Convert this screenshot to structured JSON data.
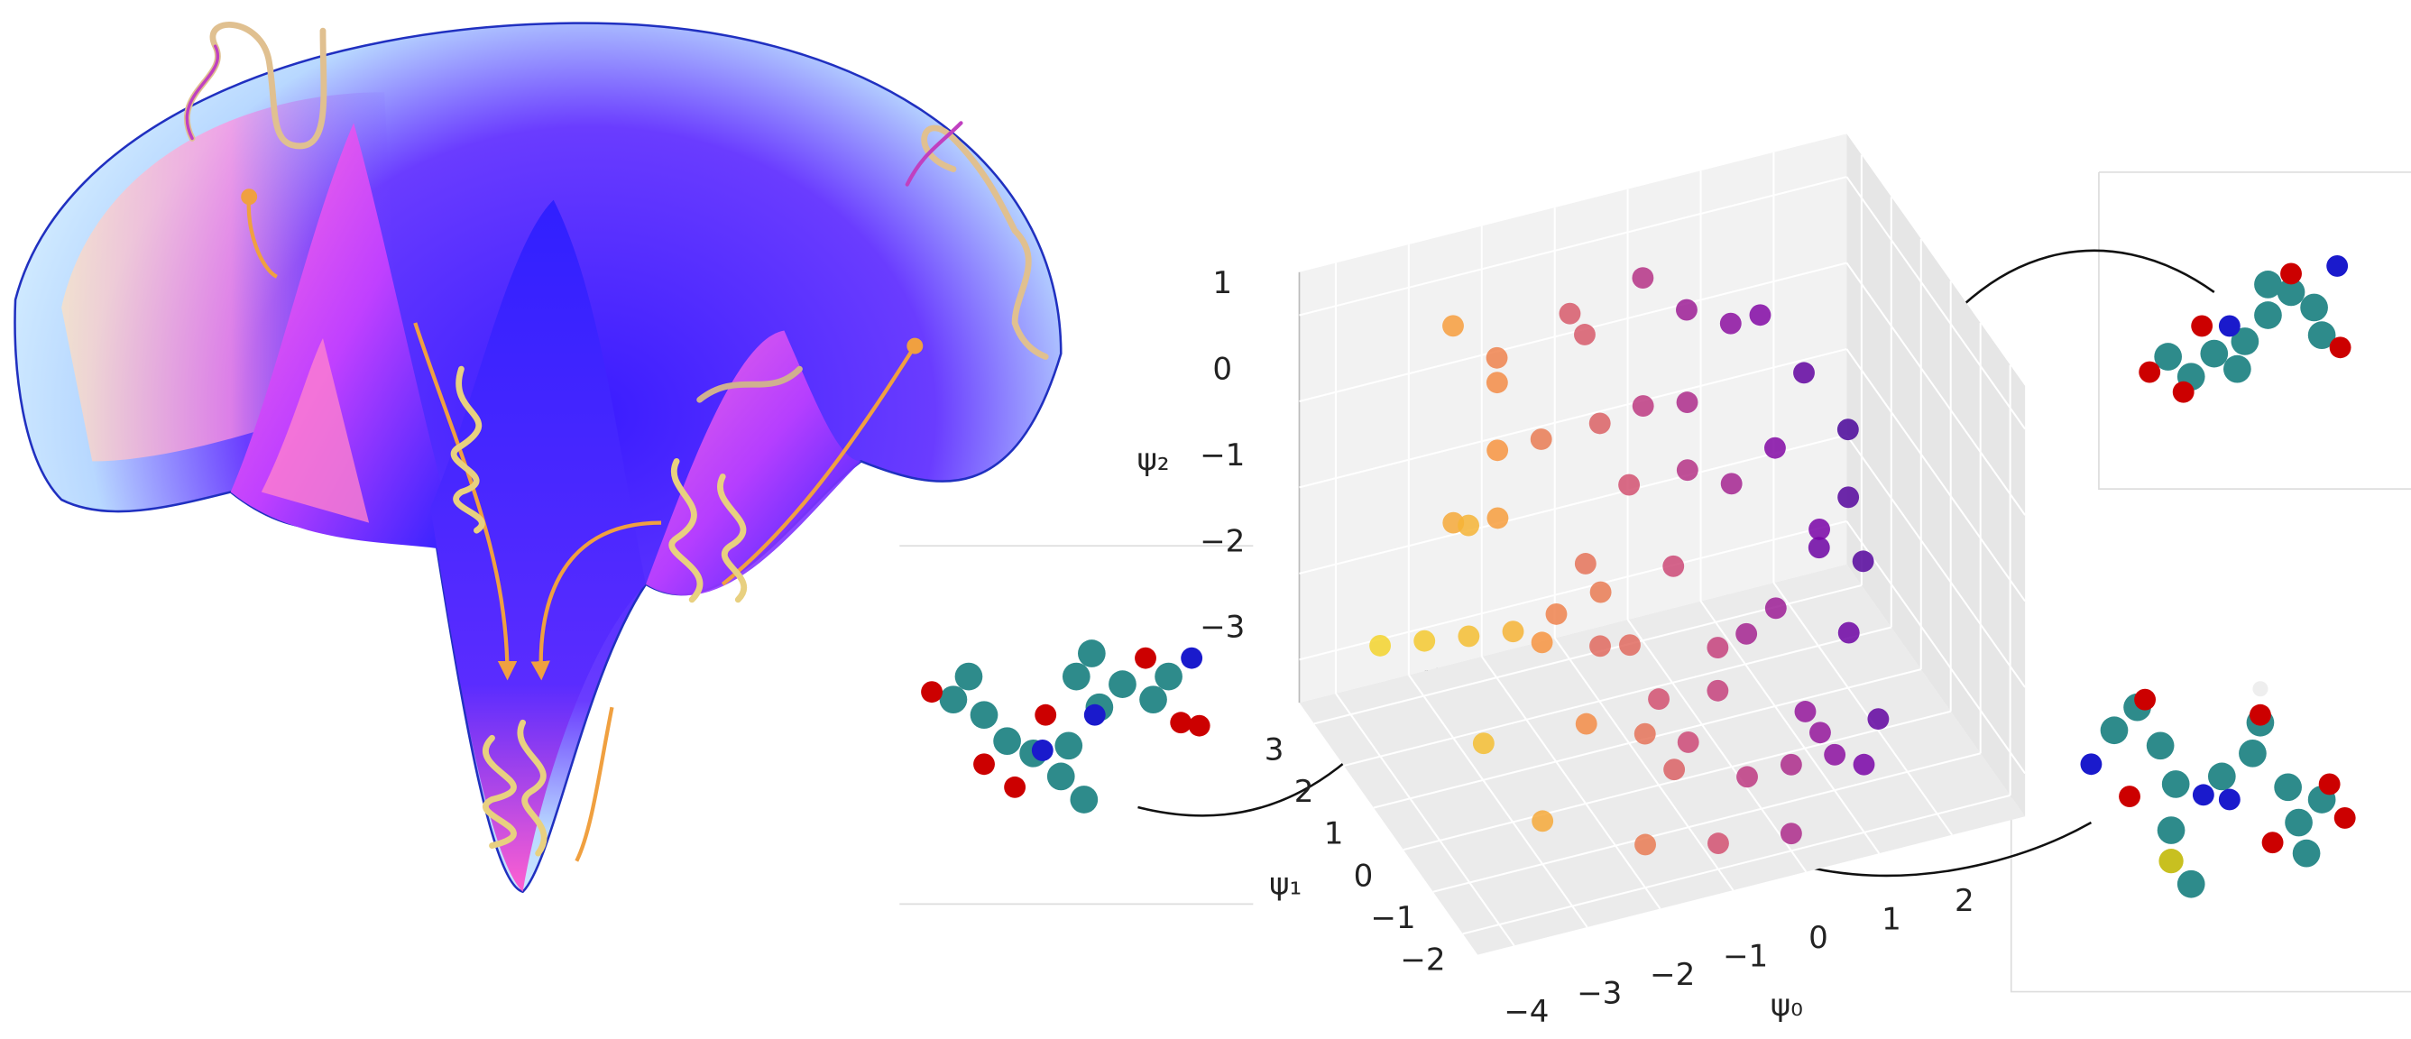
{
  "chart_data": {
    "type": "scatter3d",
    "xlabel": "ψ₀",
    "ylabel": "ψ₁",
    "zlabel": "ψ₂",
    "xlim": [
      -4.5,
      3
    ],
    "ylim": [
      -2.5,
      3.5
    ],
    "zlim": [
      -3.5,
      1.5
    ],
    "xticks": [
      {
        "value": -4,
        "label": "−4"
      },
      {
        "value": -3,
        "label": "−3"
      },
      {
        "value": -2,
        "label": "−2"
      },
      {
        "value": -1,
        "label": "−1"
      },
      0,
      1,
      2
    ],
    "yticks": [
      {
        "value": -2,
        "label": "−2"
      },
      {
        "value": -1,
        "label": "−1"
      },
      0,
      1,
      2,
      3
    ],
    "zticks": [
      {
        "value": -3,
        "label": "−3"
      },
      {
        "value": -2,
        "label": "−2"
      },
      {
        "value": -1,
        "label": "−1"
      },
      0,
      1
    ],
    "colormap": [
      "#f0f921",
      "#f89540",
      "#cc4778",
      "#7e03a8",
      "#0d0887"
    ],
    "grid": true,
    "x": [
      -3.8,
      -3.6,
      -3.4,
      -3.2,
      -3.0,
      -2.8,
      -2.6,
      -2.4,
      -2.2,
      -2.0,
      -1.8,
      -1.6,
      -1.4,
      -1.2,
      -1.0,
      -0.8,
      -0.6,
      -0.4,
      -0.2,
      0.0,
      0.2,
      0.4,
      0.6,
      0.8,
      1.0,
      1.2,
      1.4,
      1.6,
      1.8,
      2.0,
      -3.4,
      -3.0,
      -2.6,
      -2.2,
      -1.8,
      -1.4,
      -1.0,
      -0.6,
      -0.2,
      0.2,
      0.6,
      1.0,
      1.4,
      1.8,
      -2.8,
      -2.0,
      -1.2,
      -0.4,
      0.4,
      1.2,
      -3.2,
      -2.4,
      -1.6,
      -0.8,
      0.0,
      0.8,
      1.6,
      -2.0,
      -1.0,
      0.0
    ],
    "y": [
      2.5,
      1.5,
      0.5,
      -0.5,
      2.0,
      1.0,
      0.0,
      -1.0,
      2.5,
      1.5,
      0.5,
      -0.5,
      -1.5,
      2.0,
      1.0,
      0.0,
      -1.0,
      -1.5,
      2.5,
      1.5,
      0.5,
      -0.5,
      -1.0,
      2.0,
      1.0,
      0.0,
      -0.5,
      1.5,
      0.5,
      1.0,
      0.0,
      -1.0,
      1.5,
      0.5,
      -1.5,
      1.0,
      0.0,
      -1.0,
      1.0,
      0.0,
      -1.5,
      1.5,
      0.5,
      0.0,
      2.5,
      -0.5,
      2.5,
      2.0,
      2.5,
      -1.5,
      1.0,
      2.0,
      0.5,
      -0.5,
      -2.0,
      -1.5,
      -1.0,
      -2.0,
      -2.0,
      -2.0
    ],
    "z": [
      -2.5,
      -2.0,
      -1.5,
      -1.0,
      -1.0,
      -0.5,
      -1.5,
      -2.0,
      0.5,
      0.0,
      -1.0,
      -1.5,
      -2.5,
      0.8,
      -0.5,
      -1.0,
      -2.0,
      -2.8,
      1.0,
      0.0,
      -0.5,
      -1.5,
      -2.5,
      0.5,
      -0.5,
      -1.0,
      -2.0,
      0.0,
      -1.0,
      -0.5,
      -2.5,
      -3.0,
      0.0,
      -1.5,
      -2.0,
      0.3,
      -2.5,
      -1.5,
      -0.5,
      -2.0,
      -2.5,
      0.8,
      -1.5,
      -1.5,
      1.0,
      -0.8,
      0.8,
      -0.2,
      0.5,
      -3.0,
      -0.5,
      0.5,
      -2.0,
      -2.8,
      -2.5,
      -2.8,
      -2.8,
      -3.0,
      -3.2,
      -3.3
    ]
  }
}
